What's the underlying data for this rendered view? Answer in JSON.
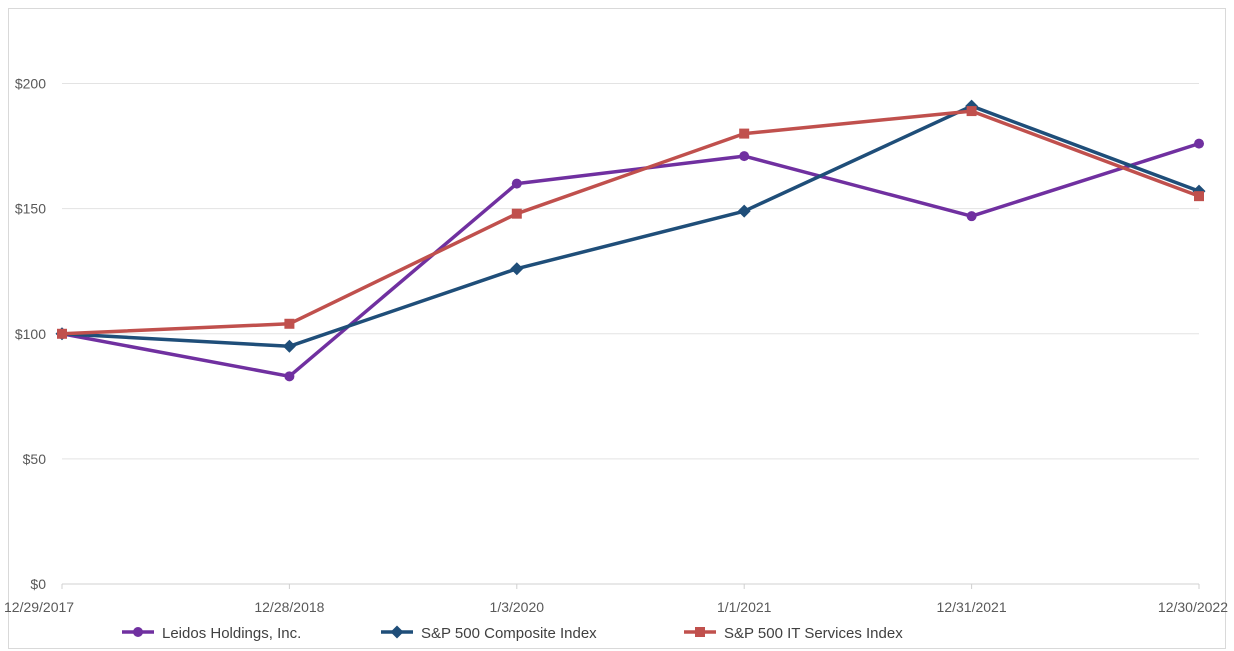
{
  "chart_data": {
    "type": "line",
    "title": "",
    "xlabel": "",
    "ylabel": "",
    "categories": [
      "12/29/2017",
      "12/28/2018",
      "1/3/2020",
      "1/1/2021",
      "12/31/2021",
      "12/30/2022"
    ],
    "ylim": [
      0,
      225
    ],
    "yticks": [
      0,
      50,
      100,
      150,
      200
    ],
    "ytick_labels": [
      "$0",
      "$50",
      "$100",
      "$150",
      "$200"
    ],
    "grid": true,
    "legend_position": "bottom",
    "series": [
      {
        "name": "Leidos Holdings, Inc.",
        "values": [
          100,
          83,
          160,
          171,
          147,
          176
        ],
        "color": "#7030a0",
        "marker": "circle"
      },
      {
        "name": "S&P 500 Composite Index",
        "values": [
          100,
          95,
          126,
          149,
          191,
          157
        ],
        "color": "#1f4e79",
        "marker": "diamond"
      },
      {
        "name": "S&P 500 IT Services Index",
        "values": [
          100,
          104,
          148,
          180,
          189,
          155
        ],
        "color": "#c0504d",
        "marker": "square"
      }
    ]
  }
}
